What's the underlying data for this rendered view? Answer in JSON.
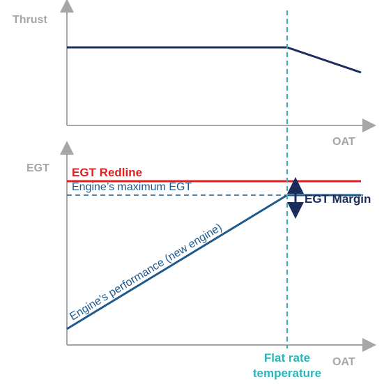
{
  "top_chart": {
    "y_axis_label": "Thrust",
    "x_axis_label": "OAT"
  },
  "bottom_chart": {
    "y_axis_label": "EGT",
    "x_axis_label": "OAT",
    "redline_label": "EGT Redline",
    "max_egt_label": "Engine’s maximum EGT",
    "performance_label": "Engine’s performance (new engine)",
    "margin_label": "EGT Margin"
  },
  "flat_rate_label": [
    "Flat rate",
    "temperature"
  ]
}
